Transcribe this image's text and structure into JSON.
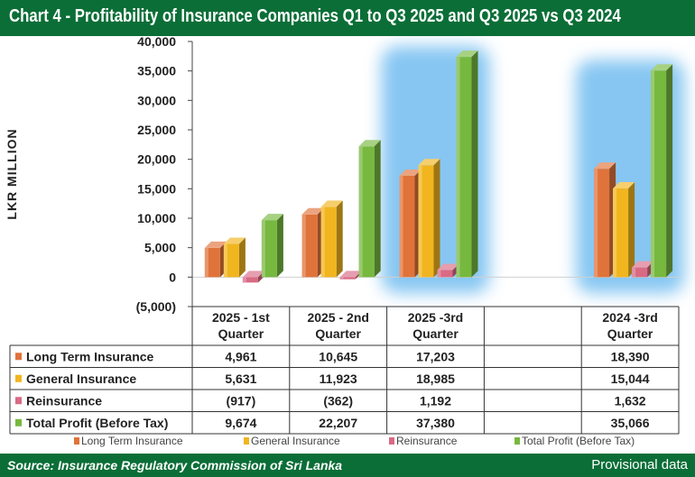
{
  "header": {
    "title": "Chart 4 - Profitability of Insurance Companies Q1 to Q3 2025 and Q3 2025 vs Q3 2024"
  },
  "footer": {
    "source": "Source: Insurance Regulatory Commission of Sri Lanka",
    "note": "Provisional data"
  },
  "chart_data": {
    "type": "bar",
    "title": "Chart 4 - Profitability of Insurance Companies Q1 to Q3 2025 and Q3 2025 vs Q3 2024",
    "ylabel": "LKR MILLION",
    "xlabel": "",
    "ylim": [
      -5000,
      40000
    ],
    "yticks": [
      40000,
      35000,
      30000,
      25000,
      20000,
      15000,
      10000,
      5000,
      0,
      -5000
    ],
    "ytick_labels": [
      "40,000",
      "35,000",
      "30,000",
      "25,000",
      "20,000",
      "15,000",
      "10,000",
      "5,000",
      "0",
      "(5,000)"
    ],
    "categories": [
      [
        "2025 - 1st",
        "Quarter"
      ],
      [
        "2025 - 2nd",
        "Quarter"
      ],
      [
        "2025 -3rd",
        "Quarter"
      ],
      [
        "",
        ""
      ],
      [
        "2024 -3rd",
        "Quarter"
      ]
    ],
    "highlighted_categories": [
      2,
      4
    ],
    "series": [
      {
        "name": "Long Term Insurance",
        "color": "#e0733a",
        "values": [
          4961,
          10645,
          17203,
          null,
          18390
        ],
        "labels": [
          "4,961",
          "10,645",
          "17,203",
          "",
          "18,390"
        ]
      },
      {
        "name": "General Insurance",
        "color": "#f1b51f",
        "values": [
          5631,
          11923,
          18985,
          null,
          15044
        ],
        "labels": [
          "5,631",
          "11,923",
          "18,985",
          "",
          "15,044"
        ]
      },
      {
        "name": "Reinsurance",
        "color": "#d96a84",
        "values": [
          -917,
          -362,
          1192,
          null,
          1632
        ],
        "labels": [
          "(917)",
          "(362)",
          "1,192",
          "",
          "1,632"
        ]
      },
      {
        "name": "Total Profit (Before Tax)",
        "color": "#77b83f",
        "values": [
          9674,
          22207,
          37380,
          null,
          35066
        ],
        "labels": [
          "9,674",
          "22,207",
          "37,380",
          "",
          "35,066"
        ]
      }
    ],
    "legend": "bottom",
    "data_table": true
  }
}
